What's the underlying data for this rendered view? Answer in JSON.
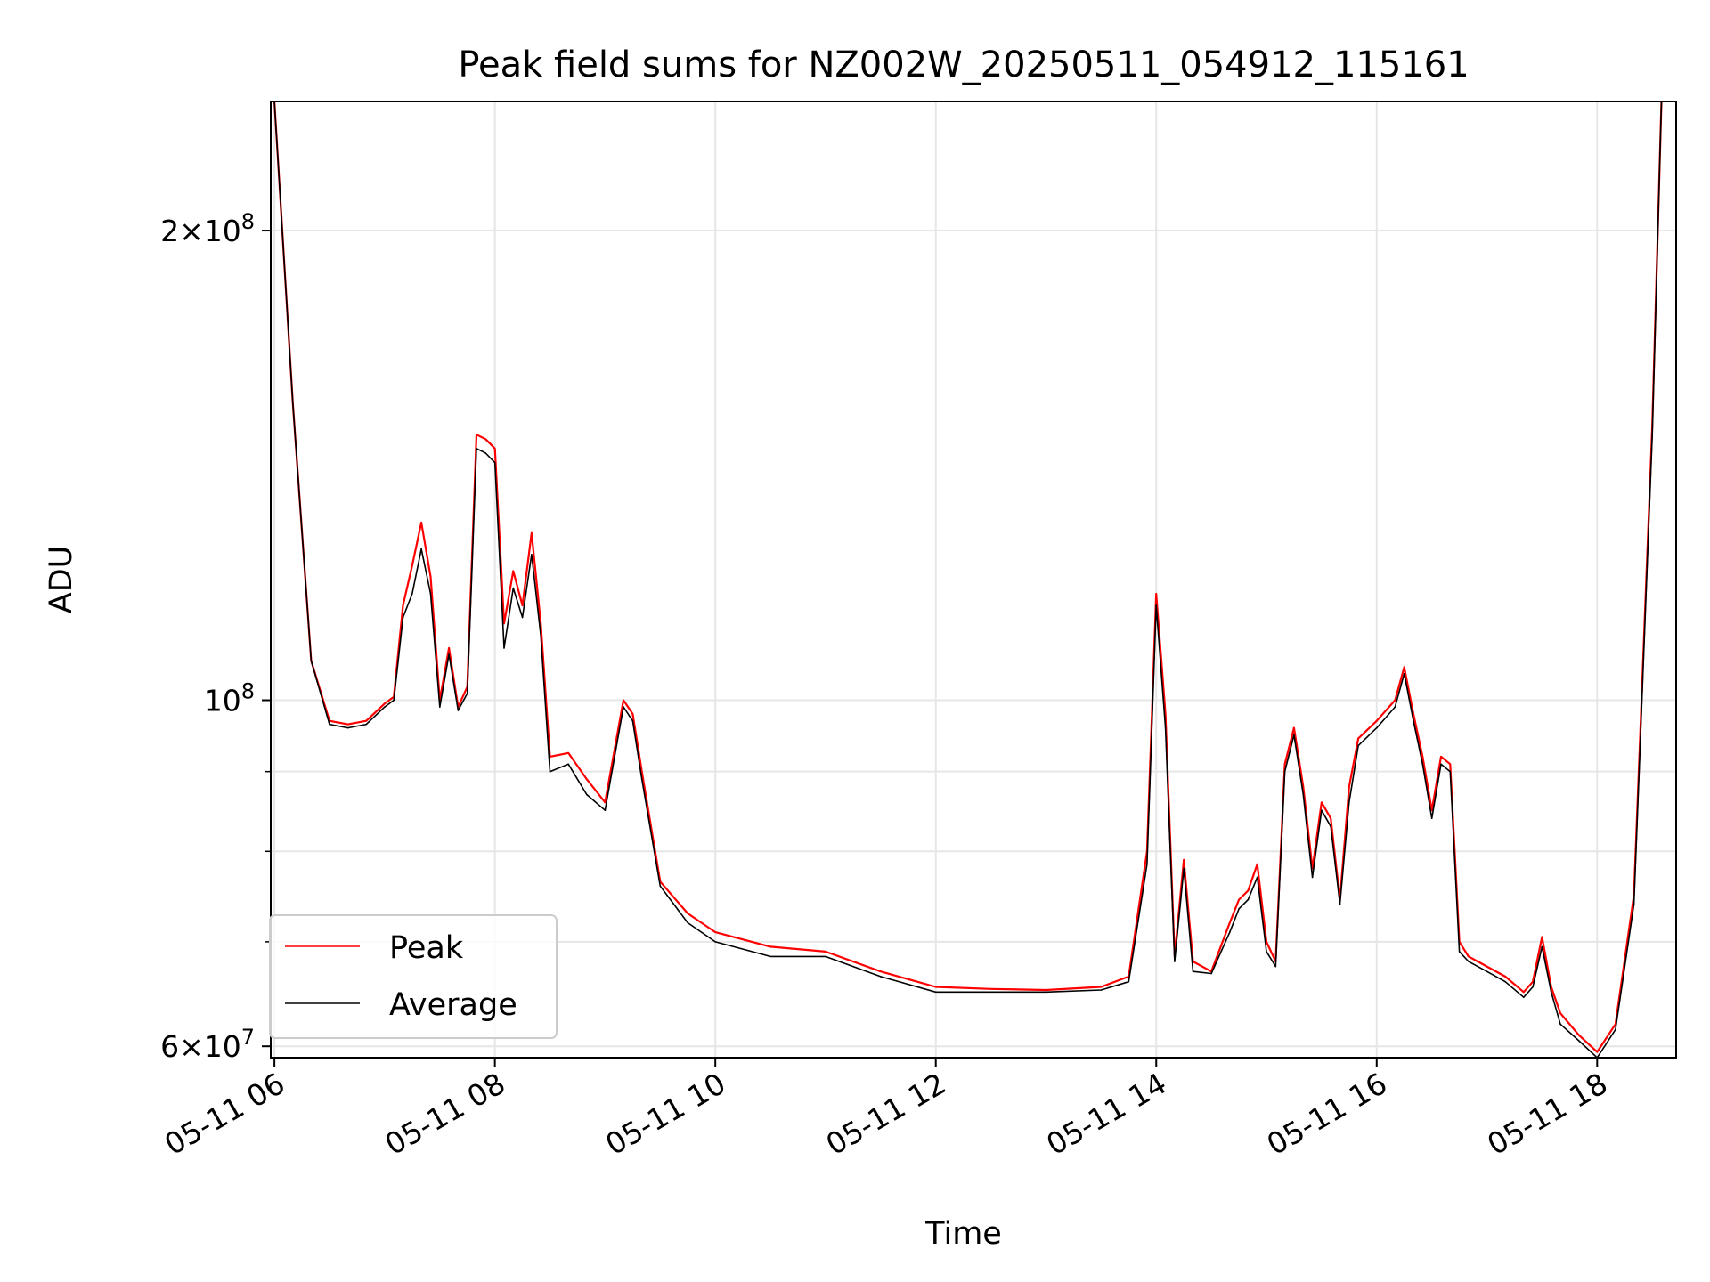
{
  "chart_data": {
    "type": "line",
    "title": "Peak field sums for NZ002W_20250511_054912_115161",
    "xlabel": "Time",
    "ylabel": "ADU",
    "y_scale": "log",
    "ylim": [
      59000000,
      242000000
    ],
    "xlim": [
      "2025-05-11 05:58",
      "2025-05-11 18:43"
    ],
    "grid": true,
    "legend_position": "lower-left",
    "x_ticks": [
      "05-11 06",
      "05-11 08",
      "05-11 10",
      "05-11 12",
      "05-11 14",
      "05-11 16",
      "05-11 18"
    ],
    "y_ticks": [
      {
        "label_base": "6×10",
        "label_exp": "7",
        "value": 60000000
      },
      {
        "label_base": "10",
        "label_exp": "8",
        "value": 100000000
      },
      {
        "label_base": "2×10",
        "label_exp": "8",
        "value": 200000000
      }
    ],
    "x": [
      "2025-05-11 06:00",
      "2025-05-11 06:10",
      "2025-05-11 06:20",
      "2025-05-11 06:30",
      "2025-05-11 06:40",
      "2025-05-11 06:50",
      "2025-05-11 07:00",
      "2025-05-11 07:05",
      "2025-05-11 07:10",
      "2025-05-11 07:15",
      "2025-05-11 07:20",
      "2025-05-11 07:25",
      "2025-05-11 07:30",
      "2025-05-11 07:35",
      "2025-05-11 07:40",
      "2025-05-11 07:45",
      "2025-05-11 07:50",
      "2025-05-11 07:55",
      "2025-05-11 08:00",
      "2025-05-11 08:05",
      "2025-05-11 08:10",
      "2025-05-11 08:15",
      "2025-05-11 08:20",
      "2025-05-11 08:25",
      "2025-05-11 08:30",
      "2025-05-11 08:40",
      "2025-05-11 08:50",
      "2025-05-11 09:00",
      "2025-05-11 09:10",
      "2025-05-11 09:15",
      "2025-05-11 09:20",
      "2025-05-11 09:30",
      "2025-05-11 09:45",
      "2025-05-11 10:00",
      "2025-05-11 10:30",
      "2025-05-11 11:00",
      "2025-05-11 11:30",
      "2025-05-11 12:00",
      "2025-05-11 12:30",
      "2025-05-11 13:00",
      "2025-05-11 13:30",
      "2025-05-11 13:45",
      "2025-05-11 13:55",
      "2025-05-11 14:00",
      "2025-05-11 14:05",
      "2025-05-11 14:10",
      "2025-05-11 14:15",
      "2025-05-11 14:20",
      "2025-05-11 14:30",
      "2025-05-11 14:40",
      "2025-05-11 14:45",
      "2025-05-11 14:50",
      "2025-05-11 14:55",
      "2025-05-11 15:00",
      "2025-05-11 15:05",
      "2025-05-11 15:10",
      "2025-05-11 15:15",
      "2025-05-11 15:20",
      "2025-05-11 15:25",
      "2025-05-11 15:30",
      "2025-05-11 15:35",
      "2025-05-11 15:40",
      "2025-05-11 15:45",
      "2025-05-11 15:50",
      "2025-05-11 16:00",
      "2025-05-11 16:10",
      "2025-05-11 16:15",
      "2025-05-11 16:20",
      "2025-05-11 16:25",
      "2025-05-11 16:30",
      "2025-05-11 16:35",
      "2025-05-11 16:40",
      "2025-05-11 16:45",
      "2025-05-11 16:50",
      "2025-05-11 17:00",
      "2025-05-11 17:10",
      "2025-05-11 17:20",
      "2025-05-11 17:25",
      "2025-05-11 17:30",
      "2025-05-11 17:35",
      "2025-05-11 17:40",
      "2025-05-11 17:50",
      "2025-05-11 18:00",
      "2025-05-11 18:10",
      "2025-05-11 18:20",
      "2025-05-11 18:30",
      "2025-05-11 18:35"
    ],
    "series": [
      {
        "name": "Peak",
        "color": "#ff0000",
        "values": [
          242000000,
          155000000,
          106000000,
          97000000,
          96500000,
          97000000,
          99500000,
          100500000,
          115000000,
          122000000,
          130000000,
          120000000,
          100000000,
          108000000,
          99000000,
          102000000,
          148000000,
          147000000,
          145000000,
          112000000,
          121000000,
          115000000,
          128000000,
          112000000,
          92000000,
          92500000,
          89000000,
          86000000,
          100000000,
          98000000,
          90000000,
          76500000,
          73000000,
          71000000,
          69500000,
          69000000,
          67000000,
          65500000,
          65300000,
          65200000,
          65500000,
          66500000,
          80000000,
          117000000,
          98000000,
          68500000,
          79000000,
          68000000,
          67000000,
          72000000,
          74500000,
          75500000,
          78500000,
          70000000,
          68000000,
          91000000,
          96000000,
          88000000,
          78000000,
          86000000,
          84000000,
          74500000,
          88000000,
          94500000,
          97000000,
          100000000,
          105000000,
          98000000,
          92000000,
          85000000,
          92000000,
          91000000,
          70000000,
          68500000,
          67500000,
          66500000,
          65000000,
          66000000,
          70500000,
          65500000,
          63000000,
          61000000,
          59500000,
          62000000,
          75000000,
          150000000,
          242000000
        ]
      },
      {
        "name": "Average",
        "color": "#000000",
        "values": [
          242000000,
          155000000,
          106000000,
          96500000,
          96000000,
          96500000,
          99000000,
          100000000,
          113000000,
          117000000,
          125000000,
          117000000,
          99000000,
          107000000,
          98500000,
          101000000,
          145000000,
          144000000,
          142000000,
          108000000,
          118000000,
          113000000,
          124000000,
          110000000,
          90000000,
          91000000,
          87000000,
          85000000,
          99000000,
          97000000,
          89000000,
          76000000,
          72000000,
          70000000,
          68500000,
          68500000,
          66500000,
          65000000,
          65000000,
          65000000,
          65200000,
          66000000,
          78500000,
          115000000,
          96000000,
          68000000,
          78000000,
          67000000,
          66800000,
          71000000,
          73500000,
          74500000,
          77000000,
          69000000,
          67500000,
          90000000,
          95000000,
          87000000,
          77000000,
          85000000,
          83000000,
          74000000,
          86000000,
          93500000,
          96000000,
          99000000,
          104000000,
          97000000,
          91000000,
          84000000,
          91000000,
          90000000,
          69000000,
          68000000,
          67000000,
          66000000,
          64500000,
          65500000,
          69500000,
          65000000,
          62000000,
          60500000,
          59000000,
          61500000,
          74000000,
          148000000,
          242000000
        ]
      }
    ]
  }
}
